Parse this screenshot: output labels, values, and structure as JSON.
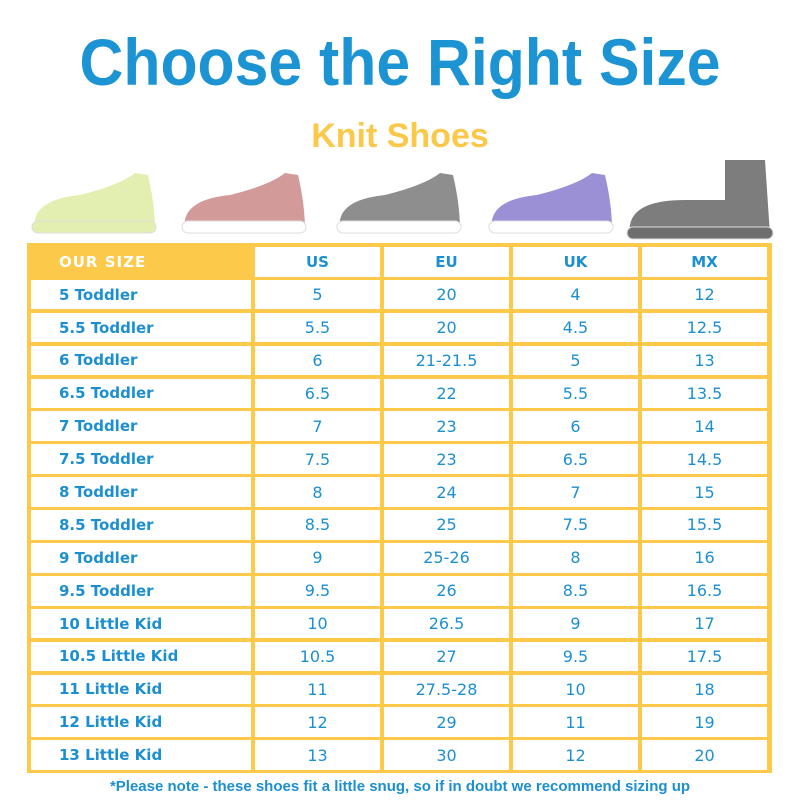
{
  "title": "Choose the Right Size",
  "subtitle": "Knit Shoes",
  "shoes": [
    {
      "color": "#e3efb0"
    },
    {
      "color": "#d39a9a"
    },
    {
      "color": "#8e8e8e"
    },
    {
      "color": "#9b8fd6"
    },
    {
      "color": "#7d7d7d"
    }
  ],
  "table": {
    "headers": [
      "OUR SIZE",
      "US",
      "EU",
      "UK",
      "MX"
    ],
    "rows": [
      [
        "5 Toddler",
        "5",
        "20",
        "4",
        "12"
      ],
      [
        "5.5 Toddler",
        "5.5",
        "20",
        "4.5",
        "12.5"
      ],
      [
        "6 Toddler",
        "6",
        "21-21.5",
        "5",
        "13"
      ],
      [
        "6.5 Toddler",
        "6.5",
        "22",
        "5.5",
        "13.5"
      ],
      [
        "7 Toddler",
        "7",
        "23",
        "6",
        "14"
      ],
      [
        "7.5 Toddler",
        "7.5",
        "23",
        "6.5",
        "14.5"
      ],
      [
        "8 Toddler",
        "8",
        "24",
        "7",
        "15"
      ],
      [
        "8.5 Toddler",
        "8.5",
        "25",
        "7.5",
        "15.5"
      ],
      [
        "9 Toddler",
        "9",
        "25-26",
        "8",
        "16"
      ],
      [
        "9.5 Toddler",
        "9.5",
        "26",
        "8.5",
        "16.5"
      ],
      [
        "10 Little Kid",
        "10",
        "26.5",
        "9",
        "17"
      ],
      [
        "10.5 Little Kid",
        "10.5",
        "27",
        "9.5",
        "17.5"
      ],
      [
        "11 Little Kid",
        "11",
        "27.5-28",
        "10",
        "18"
      ],
      [
        "12 Little Kid",
        "12",
        "29",
        "11",
        "19"
      ],
      [
        "13 Little Kid",
        "13",
        "30",
        "12",
        "20"
      ]
    ]
  },
  "note": "*Please note - these shoes fit a little snug, so if in doubt we recommend sizing up",
  "colors": {
    "blue": "#1c8fd0",
    "yellow": "#fcc94a"
  }
}
